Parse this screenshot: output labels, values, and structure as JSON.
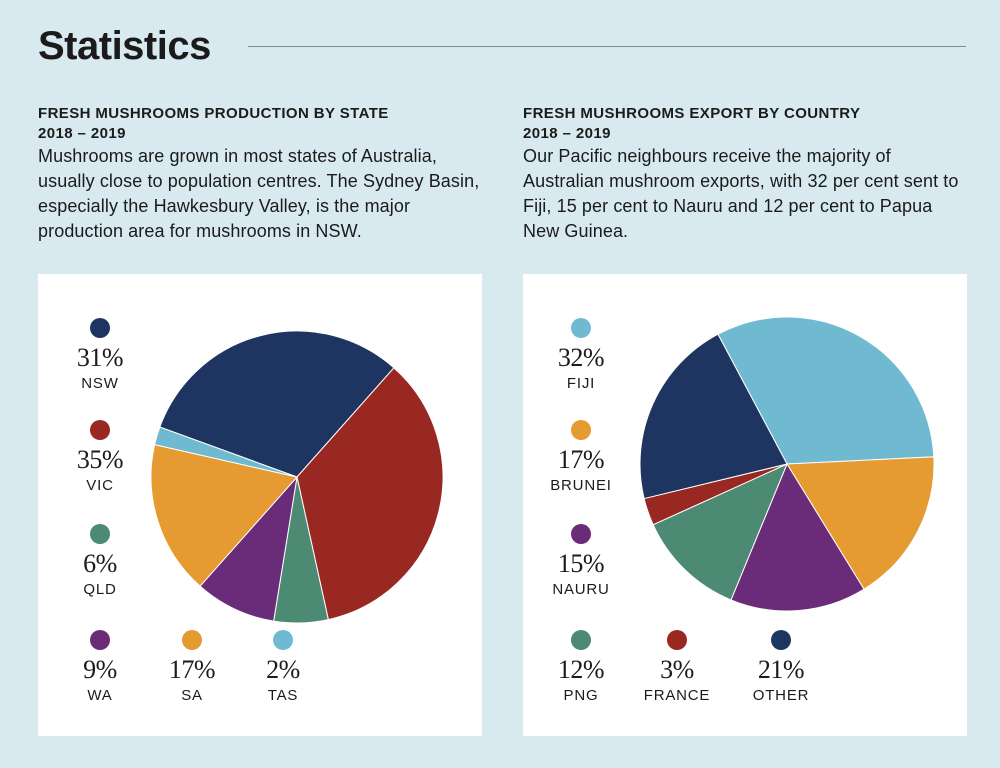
{
  "page": {
    "title": "Statistics"
  },
  "left_section": {
    "heading_line1": "FRESH MUSHROOMS PRODUCTION BY STATE",
    "heading_line2": "2018 – 2019",
    "description": "Mushrooms are grown in most states of Australia, usually close to population centres. The Sydney Basin, especially the Hawkesbury Valley, is the major production area for mushrooms in NSW."
  },
  "right_section": {
    "heading_line1": "FRESH MUSHROOMS EXPORT BY COUNTRY",
    "heading_line2": "2018 – 2019",
    "description": "Our Pacific neighbours receive the majority of Australian mushroom exports, with 32 per cent sent to Fiji, 15 per cent to Nauru and 12 per cent to Papua New Guinea."
  },
  "chart_data": [
    {
      "type": "pie",
      "title": "FRESH MUSHROOMS PRODUCTION BY STATE",
      "subtitle": "2018 – 2019",
      "unit": "%",
      "slices": [
        {
          "label": "NSW",
          "value": 31,
          "display": "31%",
          "color": "#1f3561"
        },
        {
          "label": "VIC",
          "value": 35,
          "display": "35%",
          "color": "#9a2822"
        },
        {
          "label": "QLD",
          "value": 6,
          "display": "6%",
          "color": "#4d8a74"
        },
        {
          "label": "WA",
          "value": 9,
          "display": "9%",
          "color": "#6a2b78"
        },
        {
          "label": "SA",
          "value": 17,
          "display": "17%",
          "color": "#e59a32"
        },
        {
          "label": "TAS",
          "value": 2,
          "display": "2%",
          "color": "#6fbad0"
        }
      ]
    },
    {
      "type": "pie",
      "title": "FRESH MUSHROOMS EXPORT BY COUNTRY",
      "subtitle": "2018 – 2019",
      "unit": "%",
      "slices": [
        {
          "label": "FIJI",
          "value": 32,
          "display": "32%",
          "color": "#6fbad0"
        },
        {
          "label": "BRUNEI",
          "value": 17,
          "display": "17%",
          "color": "#e59a32"
        },
        {
          "label": "NAURU",
          "value": 15,
          "display": "15%",
          "color": "#6a2b78"
        },
        {
          "label": "PNG",
          "value": 12,
          "display": "12%",
          "color": "#4d8a74"
        },
        {
          "label": "FRANCE",
          "value": 3,
          "display": "3%",
          "color": "#9a2822"
        },
        {
          "label": "OTHER",
          "value": 21,
          "display": "21%",
          "color": "#1f3561"
        }
      ]
    }
  ]
}
